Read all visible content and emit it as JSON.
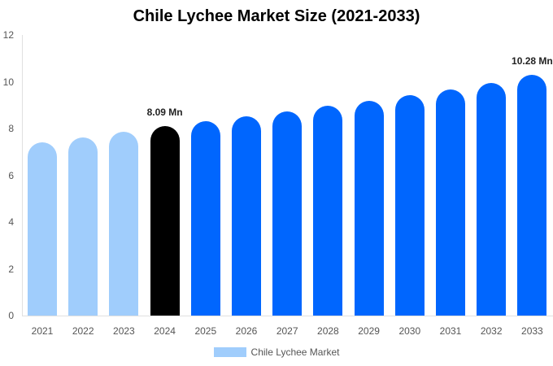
{
  "chart_data": {
    "type": "bar",
    "title": "Chile Lychee Market Size (2021-2033)",
    "xlabel": "",
    "ylabel": "",
    "ylim": [
      0,
      12
    ],
    "yticks": [
      0,
      2,
      4,
      6,
      8,
      10,
      12
    ],
    "grid": false,
    "legend_position": "bottom",
    "categories": [
      "2021",
      "2022",
      "2023",
      "2024",
      "2025",
      "2026",
      "2027",
      "2028",
      "2029",
      "2030",
      "2031",
      "2032",
      "2033"
    ],
    "series": [
      {
        "name": "Chile Lychee Market",
        "values": [
          7.41,
          7.62,
          7.86,
          8.09,
          8.3,
          8.52,
          8.74,
          8.97,
          9.19,
          9.42,
          9.68,
          9.96,
          10.28
        ]
      }
    ],
    "bar_colors": [
      "#a0cdfc",
      "#a0cdfc",
      "#a0cdfc",
      "#000000",
      "#0066fe",
      "#0066fe",
      "#0066fe",
      "#0066fe",
      "#0066fe",
      "#0066fe",
      "#0066fe",
      "#0066fe",
      "#0066fe"
    ],
    "annotations": [
      {
        "category": "2024",
        "text": "8.09 Mn"
      },
      {
        "category": "2033",
        "text": "10.28 Mn"
      }
    ]
  },
  "legend": {
    "label": "Chile Lychee Market",
    "color": "#a0cdfc"
  }
}
